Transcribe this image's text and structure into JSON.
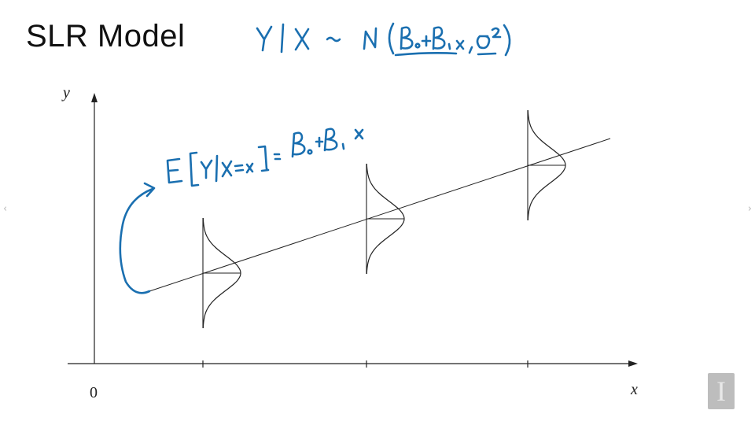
{
  "slide": {
    "title": "SLR Model"
  },
  "axes": {
    "y_label": "y",
    "x_label": "x",
    "origin_label": "0"
  },
  "annotations": {
    "distribution": "Y|X ~ N(β₀+β₁x, σ²)",
    "mean_function": "E[Y|X=x] = β₀+β₁x"
  },
  "colors": {
    "ink": "#1a6fb0",
    "line": "#222222"
  },
  "icons": {
    "logo": "university-i-logo",
    "prev": "chevron-left-icon",
    "next": "chevron-right-icon"
  }
}
